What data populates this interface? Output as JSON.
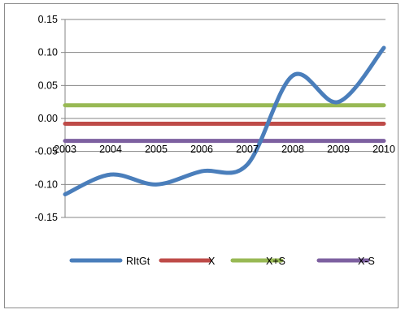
{
  "chart_data": {
    "type": "line",
    "title": "",
    "xlabel": "",
    "ylabel": "",
    "categories": [
      "2003",
      "2004",
      "2005",
      "2006",
      "2007",
      "2008",
      "2009",
      "2010"
    ],
    "y_ticks": [
      "0.15",
      "0.10",
      "0.05",
      "0.00",
      "-0.05",
      "-0.10",
      "-0.15"
    ],
    "ylim": [
      -0.15,
      0.15
    ],
    "grid": true,
    "legend_position": "bottom",
    "series": [
      {
        "name": "RItGt",
        "color": "#4a7ebb",
        "smooth": true,
        "values": [
          -0.115,
          -0.085,
          -0.1,
          -0.08,
          -0.07,
          0.065,
          0.025,
          0.107
        ]
      },
      {
        "name": "X",
        "color": "#be4b48",
        "smooth": false,
        "values": [
          -0.008,
          -0.008,
          -0.008,
          -0.008,
          -0.008,
          -0.008,
          -0.008,
          -0.008
        ]
      },
      {
        "name": "X+S",
        "color": "#98b954",
        "smooth": false,
        "values": [
          0.02,
          0.02,
          0.02,
          0.02,
          0.02,
          0.02,
          0.02,
          0.02
        ]
      },
      {
        "name": "X-S",
        "color": "#7d60a0",
        "smooth": false,
        "values": [
          -0.034,
          -0.034,
          -0.034,
          -0.034,
          -0.034,
          -0.034,
          -0.034,
          -0.034
        ]
      }
    ]
  }
}
